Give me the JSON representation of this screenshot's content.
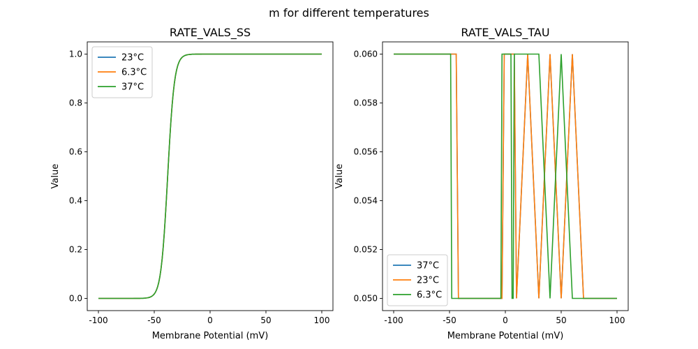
{
  "figure": {
    "suptitle": "m for different temperatures"
  },
  "chart_data": [
    {
      "type": "line",
      "title": "RATE_VALS_SS",
      "xlabel": "Membrane Potential (mV)",
      "ylabel": "Value",
      "xlim": [
        -110,
        110
      ],
      "ylim": [
        -0.05,
        1.05
      ],
      "xticks": [
        -100,
        -50,
        0,
        50,
        100
      ],
      "yticks": [
        0.0,
        0.2,
        0.4,
        0.6,
        0.8,
        1.0
      ],
      "ytick_labels": [
        "0.0",
        "0.2",
        "0.4",
        "0.6",
        "0.8",
        "1.0"
      ],
      "grid": false,
      "legend_position": "top-left",
      "curve": {
        "kind": "sigmoid",
        "midpoint": -38,
        "slope": 3.0
      },
      "series": [
        {
          "name": "23°C",
          "color": "#1f77b4"
        },
        {
          "name": "6.3°C",
          "color": "#ff7f0e"
        },
        {
          "name": "37°C",
          "color": "#2ca02c"
        }
      ]
    },
    {
      "type": "line",
      "title": "RATE_VALS_TAU",
      "xlabel": "Membrane Potential (mV)",
      "ylabel": "Value",
      "xlim": [
        -110,
        110
      ],
      "ylim": [
        0.0495,
        0.0605
      ],
      "xticks": [
        -100,
        -50,
        0,
        50,
        100
      ],
      "yticks": [
        0.05,
        0.052,
        0.054,
        0.056,
        0.058,
        0.06
      ],
      "ytick_labels": [
        "0.050",
        "0.052",
        "0.054",
        "0.056",
        "0.058",
        "0.060"
      ],
      "grid": false,
      "legend_position": "bottom-left",
      "series": [
        {
          "name": "37°C",
          "color": "#1f77b4",
          "x": [
            -100,
            -44,
            -42,
            -3,
            -1,
            8,
            10,
            20,
            30,
            40,
            50,
            60,
            70,
            100
          ],
          "y": [
            0.06,
            0.06,
            0.05,
            0.05,
            0.06,
            0.06,
            0.05,
            0.06,
            0.05,
            0.06,
            0.05,
            0.06,
            0.05,
            0.05
          ]
        },
        {
          "name": "23°C",
          "color": "#ff7f0e",
          "x": [
            -100,
            -44,
            -42,
            -3,
            -1,
            8,
            10,
            20,
            30,
            40,
            50,
            60,
            70,
            100
          ],
          "y": [
            0.06,
            0.06,
            0.05,
            0.05,
            0.06,
            0.06,
            0.05,
            0.06,
            0.05,
            0.06,
            0.05,
            0.06,
            0.05,
            0.05
          ]
        },
        {
          "name": "6.3°C",
          "color": "#2ca02c",
          "x": [
            -100,
            -49,
            -48,
            -4,
            -3,
            5,
            6,
            7,
            8,
            30,
            40,
            50,
            60,
            100
          ],
          "y": [
            0.06,
            0.06,
            0.05,
            0.05,
            0.06,
            0.06,
            0.05,
            0.05,
            0.06,
            0.06,
            0.05,
            0.06,
            0.05,
            0.05
          ]
        }
      ]
    }
  ]
}
